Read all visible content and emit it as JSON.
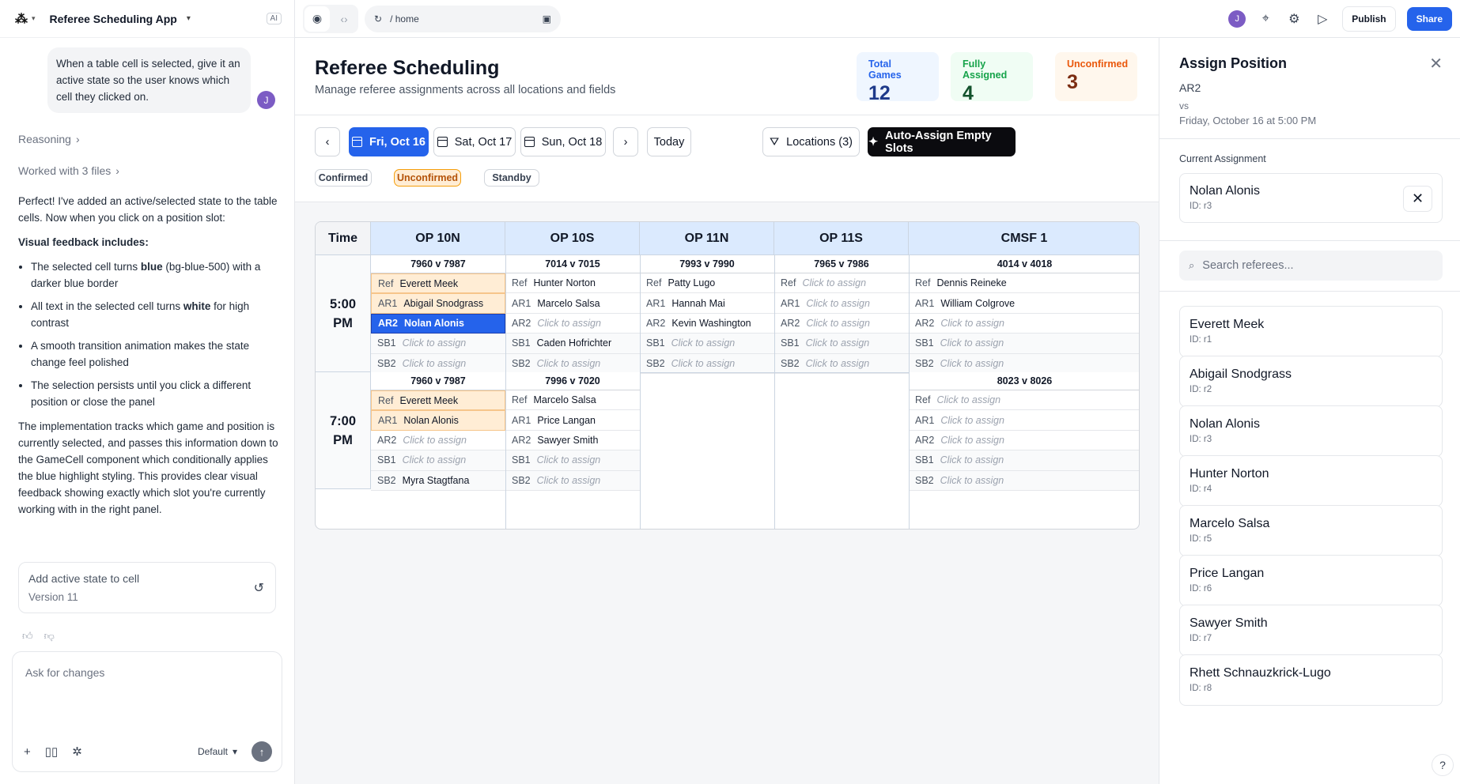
{
  "app": {
    "title": "Referee Scheduling App",
    "ai_badge": "AI"
  },
  "chat": {
    "user_message": "When a table cell is selected, give it an active state so the user knows which cell they clicked on.",
    "user_avatar": "J",
    "reasoning_label": "Reasoning",
    "worked_label": "Worked with 3 files",
    "intro": "Perfect! I've added an active/selected state to the table cells. Now when you click on a position slot:",
    "feedback_heading": "Visual feedback includes:",
    "bullets": [
      {
        "a": "The selected cell turns ",
        "b": "blue",
        "c": " (bg-blue-500) with a darker blue border"
      },
      {
        "a": "All text in the selected cell turns ",
        "b": "white",
        "c": " for high contrast"
      },
      {
        "a": "A smooth transition animation makes the state change feel polished",
        "b": "",
        "c": ""
      },
      {
        "a": "The selection persists until you click a different position or close the panel",
        "b": "",
        "c": ""
      }
    ],
    "closing": "The implementation tracks which game and position is currently selected, and passes this information down to the GameCell component which conditionally applies the blue highlight styling. This provides clear visual feedback showing exactly which slot you're currently working with in the right panel.",
    "version_title": "Add active state to cell",
    "version_sub": "Version 11",
    "composer_placeholder": "Ask for changes",
    "mode": "Default"
  },
  "toolbar": {
    "url": "/ home",
    "avatar": "J",
    "publish": "Publish",
    "share": "Share"
  },
  "header": {
    "title": "Referee Scheduling",
    "subtitle": "Manage referee assignments across all locations and fields",
    "stats": {
      "total_label": "Total Games",
      "total_value": "12",
      "full_label": "Fully Assigned",
      "full_value": "4",
      "unconf_label": "Unconfirmed",
      "unconf_value": "3"
    }
  },
  "controls": {
    "dates": [
      "Fri, Oct 16",
      "Sat, Oct 17",
      "Sun, Oct 18"
    ],
    "today": "Today",
    "locations": "Locations (3)",
    "auto_assign": "Auto-Assign Empty Slots",
    "legend": {
      "confirmed": "Confirmed",
      "unconfirmed": "Unconfirmed",
      "standby": "Standby"
    }
  },
  "grid": {
    "time_header": "Time",
    "columns": [
      "OP 10N",
      "OP 10S",
      "OP 11N",
      "OP 11S",
      "CMSF 1"
    ],
    "placeholder": "Click to assign",
    "rows": [
      {
        "time": "5:00 PM",
        "games": [
          {
            "col": 0,
            "title": "7960 v 7987",
            "slots": [
              {
                "pos": "Ref",
                "name": "Everett Meek",
                "state": "unconf"
              },
              {
                "pos": "AR1",
                "name": "Abigail Snodgrass",
                "state": "unconf"
              },
              {
                "pos": "AR2",
                "name": "Nolan Alonis",
                "state": "selected"
              },
              {
                "pos": "SB1",
                "name": "",
                "state": "standby"
              },
              {
                "pos": "SB2",
                "name": "",
                "state": "standby"
              }
            ]
          },
          {
            "col": 1,
            "title": "7014 v 7015",
            "slots": [
              {
                "pos": "Ref",
                "name": "Hunter Norton",
                "state": ""
              },
              {
                "pos": "AR1",
                "name": "Marcelo Salsa",
                "state": ""
              },
              {
                "pos": "AR2",
                "name": "",
                "state": ""
              },
              {
                "pos": "SB1",
                "name": "Caden Hofrichter",
                "state": "standby"
              },
              {
                "pos": "SB2",
                "name": "",
                "state": "standby"
              }
            ]
          },
          {
            "col": 2,
            "title": "7993 v 7990",
            "slots": [
              {
                "pos": "Ref",
                "name": "Patty Lugo",
                "state": ""
              },
              {
                "pos": "AR1",
                "name": "Hannah Mai",
                "state": ""
              },
              {
                "pos": "AR2",
                "name": "Kevin Washington",
                "state": ""
              },
              {
                "pos": "SB1",
                "name": "",
                "state": "standby"
              },
              {
                "pos": "SB2",
                "name": "",
                "state": "standby"
              }
            ]
          },
          {
            "col": 3,
            "title": "7965 v 7986",
            "slots": [
              {
                "pos": "Ref",
                "name": "",
                "state": ""
              },
              {
                "pos": "AR1",
                "name": "",
                "state": ""
              },
              {
                "pos": "AR2",
                "name": "",
                "state": ""
              },
              {
                "pos": "SB1",
                "name": "",
                "state": "standby"
              },
              {
                "pos": "SB2",
                "name": "",
                "state": "standby"
              }
            ]
          },
          {
            "col": 4,
            "title": "4014 v 4018",
            "slots": [
              {
                "pos": "Ref",
                "name": "Dennis Reineke",
                "state": ""
              },
              {
                "pos": "AR1",
                "name": "William Colgrove",
                "state": ""
              },
              {
                "pos": "AR2",
                "name": "",
                "state": ""
              },
              {
                "pos": "SB1",
                "name": "",
                "state": "standby"
              },
              {
                "pos": "SB2",
                "name": "",
                "state": "standby"
              }
            ]
          }
        ]
      },
      {
        "time": "7:00 PM",
        "games": [
          {
            "col": 0,
            "title": "7960 v 7987",
            "slots": [
              {
                "pos": "Ref",
                "name": "Everett Meek",
                "state": "unconf"
              },
              {
                "pos": "AR1",
                "name": "Nolan Alonis",
                "state": "unconf"
              },
              {
                "pos": "AR2",
                "name": "",
                "state": ""
              },
              {
                "pos": "SB1",
                "name": "",
                "state": "standby"
              },
              {
                "pos": "SB2",
                "name": "Myra Stagtfana",
                "state": "standby"
              }
            ]
          },
          {
            "col": 1,
            "title": "7996 v 7020",
            "slots": [
              {
                "pos": "Ref",
                "name": "Marcelo Salsa",
                "state": ""
              },
              {
                "pos": "AR1",
                "name": "Price Langan",
                "state": ""
              },
              {
                "pos": "AR2",
                "name": "Sawyer Smith",
                "state": ""
              },
              {
                "pos": "SB1",
                "name": "",
                "state": "standby"
              },
              {
                "pos": "SB2",
                "name": "",
                "state": "standby"
              }
            ]
          },
          {
            "col": 4,
            "title": "8023 v 8026",
            "slots": [
              {
                "pos": "Ref",
                "name": "",
                "state": ""
              },
              {
                "pos": "AR1",
                "name": "",
                "state": ""
              },
              {
                "pos": "AR2",
                "name": "",
                "state": ""
              },
              {
                "pos": "SB1",
                "name": "",
                "state": "standby"
              },
              {
                "pos": "SB2",
                "name": "",
                "state": "standby"
              }
            ]
          }
        ]
      }
    ]
  },
  "panel": {
    "title": "Assign Position",
    "position": "AR2",
    "vs": "vs",
    "datetime": "Friday, October 16 at 5:00 PM",
    "current_label": "Current Assignment",
    "current_name": "Nolan Alonis",
    "current_id": "ID: r3",
    "search_placeholder": "Search referees...",
    "referees": [
      {
        "name": "Everett Meek",
        "id": "ID: r1"
      },
      {
        "name": "Abigail Snodgrass",
        "id": "ID: r2"
      },
      {
        "name": "Nolan Alonis",
        "id": "ID: r3"
      },
      {
        "name": "Hunter Norton",
        "id": "ID: r4"
      },
      {
        "name": "Marcelo Salsa",
        "id": "ID: r5"
      },
      {
        "name": "Price Langan",
        "id": "ID: r6"
      },
      {
        "name": "Sawyer Smith",
        "id": "ID: r7"
      },
      {
        "name": "Rhett Schnauzkrick-Lugo",
        "id": "ID: r8"
      }
    ],
    "help": "?"
  },
  "colors": {
    "accent": "#2563eb",
    "unconfirmed_bg": "#ffedd5",
    "header_bg": "#dbeafe"
  }
}
